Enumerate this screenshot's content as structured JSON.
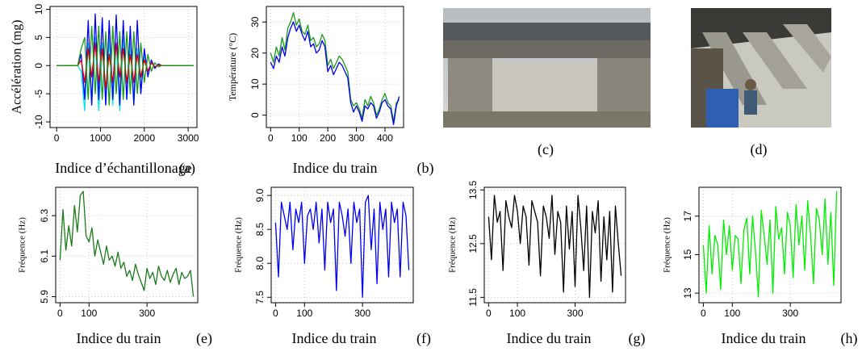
{
  "chart_data": [
    {
      "type": "line",
      "panel_label": "(a)",
      "y_label": "Accélération (mg)",
      "x_label": "Indice d’échantillonage",
      "x": [
        0,
        80,
        160,
        240,
        320,
        400,
        480,
        560,
        640,
        720,
        800,
        880,
        960,
        1040,
        1120,
        1200,
        1280,
        1360,
        1440,
        1520,
        1600,
        1680,
        1760,
        1840,
        1920,
        2000,
        2080,
        2160,
        2240,
        2320,
        2400,
        2480,
        2560,
        2640,
        2720,
        2800,
        2880,
        2960,
        3040,
        3120
      ],
      "series": [
        {
          "color": "#00e5ee",
          "values": [
            0,
            0,
            0,
            0,
            0,
            0,
            0,
            -1,
            -8,
            4,
            -7,
            5,
            -8,
            4,
            -7,
            5,
            -7,
            4,
            -8,
            5,
            -6,
            4,
            -7,
            3,
            -5,
            2,
            -1,
            0.5,
            -0.3,
            0.1,
            0,
            0,
            0,
            0,
            0,
            0,
            0,
            0,
            0,
            0
          ]
        },
        {
          "color": "#0000ee",
          "values": [
            0,
            0,
            0,
            0,
            0,
            0,
            0,
            2,
            -6,
            8,
            -7,
            9.2,
            -6,
            8.5,
            -7,
            8,
            -6,
            9,
            -7,
            8,
            -6,
            7,
            -7,
            8,
            -5,
            3,
            -2,
            1,
            -0.5,
            0.3,
            0,
            0,
            0,
            0,
            0,
            0,
            0,
            0,
            0,
            0
          ]
        },
        {
          "color": "#e00000",
          "values": [
            0,
            0,
            0,
            0,
            0,
            0,
            0,
            1,
            -3,
            3,
            -2,
            4,
            -3,
            3,
            -4,
            2,
            -3,
            4,
            -2,
            3,
            -3,
            2,
            -3,
            2,
            -2,
            1,
            -1,
            0.5,
            -0.2,
            0.1,
            0,
            0,
            0,
            0,
            0,
            0,
            0,
            0,
            0,
            0
          ]
        },
        {
          "color": "#1a9a1a",
          "values": [
            0,
            0,
            0,
            0,
            0,
            0,
            0,
            3,
            5,
            -6,
            7,
            -5,
            7,
            -6,
            6,
            -7,
            7,
            -5,
            6,
            -6,
            6,
            -5,
            6,
            -5,
            4,
            -3,
            2,
            -1,
            0.5,
            -0.2,
            0,
            0,
            0,
            0,
            0,
            0,
            0,
            0,
            0,
            0
          ]
        }
      ],
      "xlim": [
        -150,
        3200
      ],
      "xticks": [
        0,
        1000,
        2000,
        3000
      ],
      "ylim": [
        -11,
        10.5
      ],
      "yticks": [
        -10,
        -5,
        0,
        5,
        10
      ],
      "grid": true
    },
    {
      "type": "line",
      "panel_label": "(b)",
      "y_label": "Température (°C)",
      "x_label": "Indice du train",
      "x": [
        0,
        10,
        20,
        30,
        40,
        50,
        60,
        70,
        80,
        90,
        100,
        110,
        120,
        130,
        140,
        150,
        160,
        170,
        180,
        190,
        200,
        210,
        220,
        230,
        240,
        250,
        260,
        270,
        280,
        290,
        300,
        310,
        320,
        330,
        340,
        350,
        360,
        370,
        380,
        390,
        400,
        410,
        420,
        430,
        440,
        450
      ],
      "series": [
        {
          "color": "#1a9a1a",
          "values": [
            20,
            17,
            22,
            19,
            25,
            21,
            28,
            30,
            33,
            29,
            31,
            27,
            26,
            29,
            24,
            25,
            22,
            23,
            26,
            24,
            16,
            18,
            15,
            17,
            19,
            18,
            16,
            14,
            5,
            3,
            4,
            2,
            -1,
            5,
            3,
            6,
            4,
            0,
            2,
            5,
            7,
            4,
            3,
            -2,
            4,
            5
          ]
        },
        {
          "color": "#0000ee",
          "values": [
            17,
            15,
            19,
            17,
            22,
            19,
            25,
            28,
            30,
            27,
            29,
            26,
            24,
            27,
            22,
            23,
            20,
            21,
            24,
            22,
            14,
            16,
            13,
            15,
            17,
            16,
            14,
            12,
            4,
            1,
            3,
            1,
            -2,
            3,
            2,
            4,
            3,
            -1,
            1,
            4,
            5,
            3,
            2,
            -3,
            3,
            6
          ]
        }
      ],
      "xlim": [
        -15,
        465
      ],
      "xticks": [
        0,
        100,
        200,
        300,
        400
      ],
      "ylim": [
        -4,
        35
      ],
      "yticks": [
        0,
        10,
        20,
        30
      ],
      "grid": true
    },
    {
      "type": "line",
      "panel_label": "(e)",
      "y_label": "Fréquence (Hz)",
      "x_label": "Indice du train",
      "x": [
        0,
        10,
        20,
        30,
        40,
        50,
        60,
        70,
        80,
        90,
        100,
        110,
        120,
        130,
        140,
        150,
        160,
        170,
        180,
        190,
        200,
        210,
        220,
        230,
        240,
        250,
        260,
        270,
        280,
        290,
        300,
        310,
        320,
        330,
        340,
        350,
        360,
        370,
        380,
        390,
        400,
        410,
        420,
        430,
        440,
        450,
        460
      ],
      "series": [
        {
          "color": "#1a7a1a",
          "values": [
            6.08,
            6.33,
            6.13,
            6.25,
            6.15,
            6.35,
            6.22,
            6.4,
            6.42,
            6.2,
            6.17,
            6.24,
            6.1,
            6.18,
            6.12,
            6.06,
            6.15,
            6.08,
            6.1,
            6.05,
            6.12,
            6.04,
            6.07,
            6.0,
            6.03,
            5.98,
            6.06,
            6.01,
            5.97,
            5.93,
            6.04,
            5.99,
            6.02,
            5.96,
            6.05,
            6.0,
            5.98,
            6.03,
            5.97,
            6.01,
            6.04,
            5.96,
            6.02,
            5.99,
            6.0,
            6.03,
            5.9
          ]
        }
      ],
      "xlim": [
        -15,
        475
      ],
      "xticks": [
        0,
        100,
        300
      ],
      "ylim": [
        5.87,
        6.44
      ],
      "yticks": [
        5.9,
        6.1,
        6.3
      ],
      "grid": true
    },
    {
      "type": "line",
      "panel_label": "(f)",
      "y_label": "Fréquence (Hz)",
      "x_label": "Indice du train",
      "x": [
        0,
        10,
        20,
        30,
        40,
        50,
        60,
        70,
        80,
        90,
        100,
        110,
        120,
        130,
        140,
        150,
        160,
        170,
        180,
        190,
        200,
        210,
        220,
        230,
        240,
        250,
        260,
        270,
        280,
        290,
        300,
        310,
        320,
        330,
        340,
        350,
        360,
        370,
        380,
        390,
        400,
        410,
        420,
        430,
        440,
        450,
        460
      ],
      "series": [
        {
          "color": "#0000ee",
          "values": [
            8.6,
            7.8,
            8.9,
            8.7,
            8.5,
            8.9,
            8.2,
            8.8,
            8.6,
            8.9,
            8.0,
            8.7,
            8.8,
            8.5,
            8.9,
            8.3,
            8.8,
            7.9,
            8.9,
            8.6,
            8.8,
            7.6,
            8.9,
            8.7,
            8.4,
            8.8,
            8.0,
            8.9,
            8.6,
            8.8,
            7.5,
            8.9,
            9.0,
            8.2,
            8.8,
            7.7,
            8.9,
            8.5,
            8.8,
            7.8,
            8.9,
            8.6,
            8.8,
            7.8,
            8.9,
            8.7,
            7.9
          ]
        }
      ],
      "xlim": [
        -15,
        475
      ],
      "xticks": [
        0,
        100,
        300
      ],
      "ylim": [
        7.42,
        9.12
      ],
      "yticks": [
        7.5,
        {
          "value": 8,
          "label": "8.0"
        },
        8.5,
        {
          "value": 9,
          "label": "9.0"
        }
      ],
      "grid": true
    },
    {
      "type": "line",
      "panel_label": "(g)",
      "y_label": "Fréquence (Hz)",
      "x_label": "Indice du train",
      "x": [
        0,
        10,
        20,
        30,
        40,
        50,
        60,
        70,
        80,
        90,
        100,
        110,
        120,
        130,
        140,
        150,
        160,
        170,
        180,
        190,
        200,
        210,
        220,
        230,
        240,
        250,
        260,
        270,
        280,
        290,
        300,
        310,
        320,
        330,
        340,
        350,
        360,
        370,
        380,
        390,
        400,
        410,
        420,
        430,
        440,
        450,
        460
      ],
      "series": [
        {
          "color": "#000000",
          "values": [
            13.0,
            12.2,
            13.4,
            12.9,
            13.1,
            12.0,
            13.3,
            13.0,
            12.8,
            13.4,
            13.1,
            12.5,
            13.2,
            13.0,
            12.1,
            13.3,
            13.1,
            12.9,
            11.9,
            13.2,
            13.0,
            12.6,
            13.4,
            12.3,
            13.1,
            12.9,
            11.6,
            13.2,
            12.4,
            13.1,
            11.7,
            13.4,
            12.8,
            12.0,
            13.2,
            11.5,
            13.1,
            12.7,
            13.3,
            11.8,
            13.0,
            12.2,
            13.1,
            11.6,
            13.2,
            12.5,
            11.9
          ]
        }
      ],
      "xlim": [
        -15,
        475
      ],
      "xticks": [
        0,
        100,
        300
      ],
      "ylim": [
        11.4,
        13.55
      ],
      "yticks": [
        11.5,
        12.5,
        13.5
      ],
      "grid": true
    },
    {
      "type": "line",
      "panel_label": "(h)",
      "y_label": "Fréquence (Hz)",
      "x_label": "Indice du train",
      "x": [
        0,
        10,
        20,
        30,
        40,
        50,
        60,
        70,
        80,
        90,
        100,
        110,
        120,
        130,
        140,
        150,
        160,
        170,
        180,
        190,
        200,
        210,
        220,
        230,
        240,
        250,
        260,
        270,
        280,
        290,
        300,
        310,
        320,
        330,
        340,
        350,
        360,
        370,
        380,
        390,
        400,
        410,
        420,
        430,
        440,
        450,
        460
      ],
      "series": [
        {
          "color": "#00ee00",
          "values": [
            15.5,
            13.0,
            16.5,
            14.0,
            16.0,
            15.5,
            13.2,
            16.8,
            15.0,
            16.5,
            14.2,
            16.0,
            15.8,
            13.5,
            16.3,
            16.9,
            14.0,
            17.0,
            15.2,
            12.8,
            17.3,
            16.0,
            14.5,
            16.8,
            13.0,
            17.5,
            15.8,
            16.4,
            14.0,
            17.2,
            16.5,
            13.8,
            17.6,
            15.5,
            17.0,
            14.2,
            17.8,
            16.0,
            13.5,
            17.4,
            16.8,
            15.0,
            17.9,
            14.5,
            17.2,
            13.4,
            18.3
          ]
        }
      ],
      "xlim": [
        -15,
        475
      ],
      "xticks": [
        0,
        100,
        300
      ],
      "ylim": [
        12.5,
        18.5
      ],
      "yticks": [
        13,
        15,
        17
      ],
      "grid": true
    }
  ],
  "photos": [
    {
      "label": "(c)"
    },
    {
      "label": "(d)"
    }
  ]
}
